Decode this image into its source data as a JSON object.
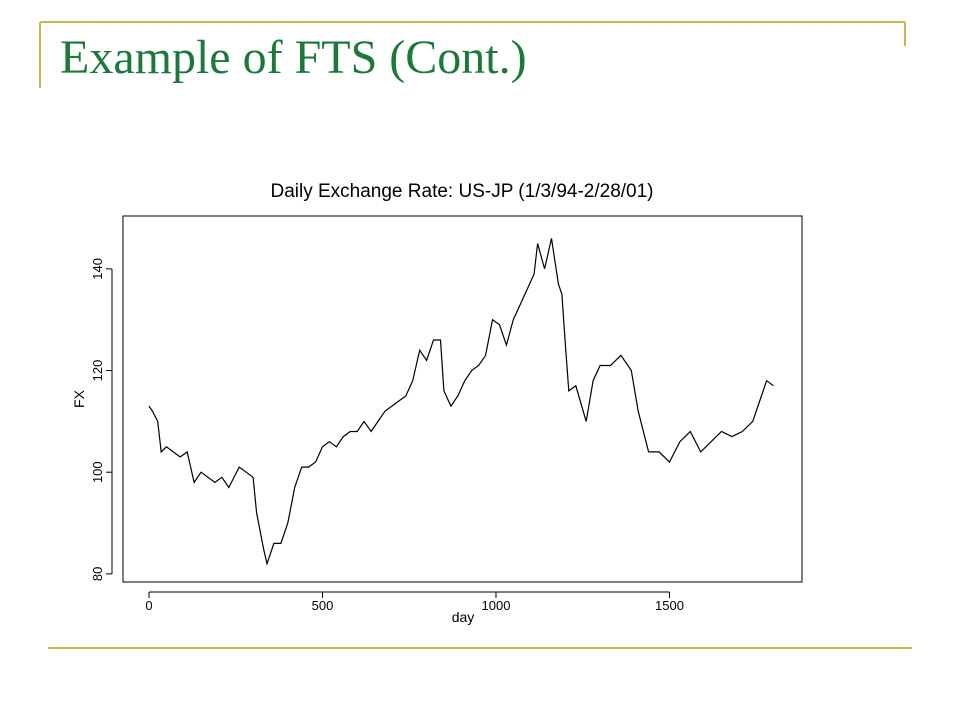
{
  "slide": {
    "title": "Example of FTS (Cont.)"
  },
  "chart_data": {
    "type": "line",
    "title": "Daily Exchange Rate: US-JP (1/3/94-2/28/01)",
    "x_label": "day",
    "y_label": "FX",
    "x": [
      0,
      10,
      25,
      35,
      50,
      70,
      90,
      110,
      130,
      150,
      170,
      190,
      210,
      230,
      260,
      280,
      300,
      310,
      330,
      340,
      360,
      380,
      400,
      420,
      440,
      460,
      480,
      500,
      520,
      540,
      560,
      580,
      600,
      620,
      640,
      660,
      680,
      700,
      720,
      740,
      760,
      780,
      800,
      820,
      840,
      850,
      870,
      890,
      910,
      930,
      950,
      970,
      990,
      1010,
      1030,
      1050,
      1070,
      1090,
      1110,
      1120,
      1140,
      1160,
      1180,
      1190,
      1200,
      1210,
      1230,
      1260,
      1280,
      1300,
      1330,
      1360,
      1390,
      1410,
      1440,
      1470,
      1500,
      1530,
      1560,
      1590,
      1620,
      1650,
      1680,
      1710,
      1740,
      1760,
      1780,
      1800
    ],
    "values": [
      113,
      112,
      110,
      104,
      105,
      104,
      103,
      104,
      98,
      100,
      99,
      98,
      99,
      97,
      101,
      100,
      99,
      92,
      85,
      82,
      86,
      86,
      90,
      97,
      101,
      101,
      102,
      105,
      106,
      105,
      107,
      108,
      108,
      110,
      108,
      110,
      112,
      113,
      114,
      115,
      118,
      124,
      122,
      126,
      126,
      116,
      113,
      115,
      118,
      120,
      121,
      123,
      130,
      129,
      125,
      130,
      133,
      136,
      139,
      145,
      140,
      146,
      137,
      135,
      125,
      116,
      117,
      110,
      118,
      121,
      121,
      123,
      120,
      112,
      104,
      104,
      102,
      106,
      108,
      104,
      106,
      108,
      107,
      108,
      110,
      114,
      118,
      117
    ],
    "color": "#000000",
    "xlim": [
      -75,
      1882
    ],
    "ylim": [
      78.4,
      150.4
    ],
    "xticks": [
      0,
      500,
      1000,
      1500
    ],
    "yticks": [
      80,
      100,
      120,
      140
    ]
  }
}
